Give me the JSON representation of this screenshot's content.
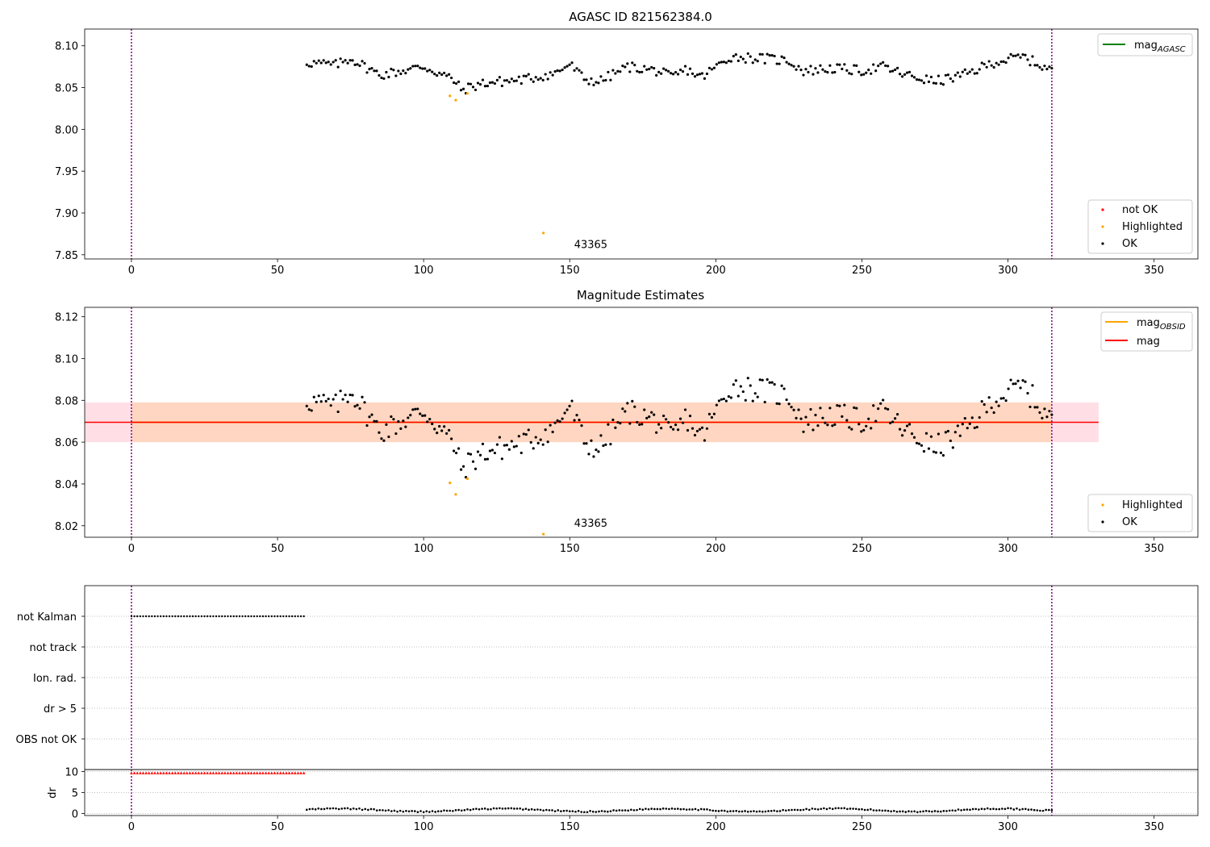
{
  "colors": {
    "ok": "#000000",
    "highlighted": "#ffa500",
    "not_ok": "#ff0000",
    "mag_agasc": "#008000",
    "mag_obsid": "#ffa500",
    "mag": "#ff0000",
    "band_mag": "#ffc0cb",
    "band_obsid": "#ffd0a8",
    "obsid_boundary": "#800080",
    "grid": "#b0b0b0"
  },
  "chart_data": [
    {
      "type": "scatter",
      "title": "AGASC ID 821562384.0",
      "xlim": [
        -16,
        365
      ],
      "ylim": [
        7.845,
        8.12
      ],
      "xticks": [
        0,
        50,
        100,
        150,
        200,
        250,
        300,
        350
      ],
      "yticks": [
        7.85,
        7.9,
        7.95,
        8.0,
        8.05,
        8.1
      ],
      "ytick_labels": [
        "7.85",
        "7.90",
        "7.95",
        "8.00",
        "8.05",
        "8.10"
      ],
      "obsid_boundaries": [
        0,
        315
      ],
      "annotations": [
        {
          "text": "43365",
          "x": 151.5,
          "y": 7.858
        }
      ],
      "legend_upper": {
        "position": "upper right",
        "entries": [
          {
            "label_main": "mag",
            "label_sub": "AGASC",
            "color": "mag_agasc"
          }
        ]
      },
      "legend_lower": {
        "position": "lower right",
        "entries": [
          {
            "label": "not OK",
            "color": "not_ok"
          },
          {
            "label": "Highlighted",
            "color": "highlighted"
          },
          {
            "label": "OK",
            "color": "ok"
          }
        ]
      },
      "highlighted_points": [
        [
          109,
          8.04
        ],
        [
          111,
          8.035
        ],
        [
          115,
          8.043
        ],
        [
          141,
          7.876
        ]
      ],
      "ok_series": {
        "x_start": 60,
        "x_end": 315,
        "count": 310
      }
    },
    {
      "type": "scatter",
      "title": "Magnitude Estimates",
      "xlim": [
        -16,
        365
      ],
      "ylim": [
        8.0145,
        8.1245
      ],
      "xticks": [
        0,
        50,
        100,
        150,
        200,
        250,
        300,
        350
      ],
      "yticks": [
        8.02,
        8.04,
        8.06,
        8.08,
        8.1,
        8.12
      ],
      "ytick_labels": [
        "8.02",
        "8.04",
        "8.06",
        "8.08",
        "8.10",
        "8.12"
      ],
      "obsid_boundaries": [
        0,
        315
      ],
      "mag": 8.0695,
      "mag_band": [
        8.06,
        8.079
      ],
      "mag_band_x": [
        -16,
        331
      ],
      "mag_obsid": 8.0695,
      "mag_obsid_band": [
        8.06,
        8.079
      ],
      "mag_obsid_band_x": [
        0,
        315
      ],
      "annotations": [
        {
          "text": "43365",
          "x": 151.5,
          "y": 8.0195
        }
      ],
      "legend_upper": {
        "position": "upper right",
        "entries": [
          {
            "label_main": "mag",
            "label_sub": "OBSID",
            "color": "mag_obsid"
          },
          {
            "label_main": "mag",
            "label_sub": "",
            "color": "mag"
          }
        ]
      },
      "legend_lower": {
        "position": "lower right",
        "entries": [
          {
            "label": "Highlighted",
            "color": "highlighted"
          },
          {
            "label": "OK",
            "color": "ok"
          }
        ]
      },
      "highlighted_points": [
        [
          109,
          8.0405
        ],
        [
          111,
          8.035
        ],
        [
          115,
          8.0425
        ],
        [
          141,
          8.016
        ]
      ],
      "ok_series": {
        "x_start": 60,
        "x_end": 315,
        "count": 310
      }
    },
    {
      "type": "scatter",
      "title": "",
      "xlim": [
        -16,
        365
      ],
      "categories": [
        "not Kalman",
        "not track",
        "Ion. rad.",
        "dr > 5",
        "OBS not OK"
      ],
      "obsid_boundaries": [
        0,
        315
      ],
      "flags": {
        "not Kalman": [
          0,
          59
        ]
      }
    },
    {
      "type": "scatter",
      "title": "",
      "ylabel": "dr",
      "xlim": [
        -16,
        365
      ],
      "ylim": [
        -0.5,
        10.5
      ],
      "xticks": [
        0,
        50,
        100,
        150,
        200,
        250,
        300,
        350
      ],
      "yticks": [
        0,
        5,
        10
      ],
      "ytick_labels": [
        "0",
        "5",
        "10"
      ],
      "obsid_boundaries": [
        0,
        315
      ],
      "not_ok_segment": {
        "x_start": 0,
        "x_end": 59,
        "y": 9.7
      },
      "ok_segment": {
        "x_start": 60,
        "x_end": 315
      }
    }
  ]
}
